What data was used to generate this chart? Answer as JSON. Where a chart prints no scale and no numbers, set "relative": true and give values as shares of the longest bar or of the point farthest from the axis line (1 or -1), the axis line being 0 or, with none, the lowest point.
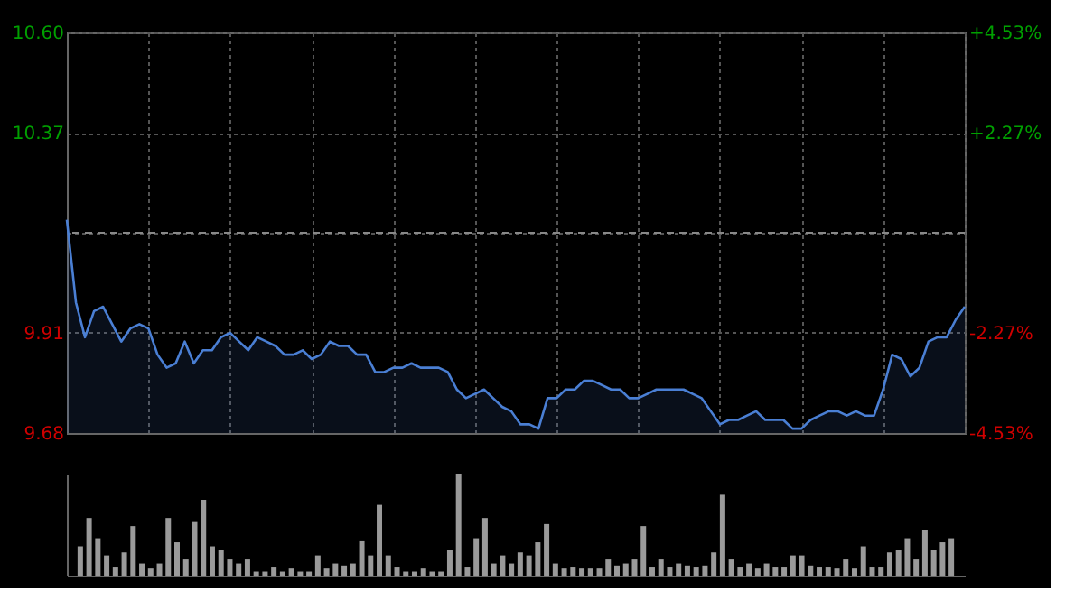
{
  "chart_data": [
    {
      "type": "area",
      "categories": [
        null,
        null,
        null,
        null,
        null,
        null,
        null,
        null,
        null,
        null,
        null,
        null,
        null,
        null,
        null,
        null,
        null,
        null,
        null,
        null,
        null,
        null,
        null,
        null,
        null,
        null,
        null,
        null,
        null,
        null,
        null,
        null,
        null,
        null,
        null,
        null,
        null,
        null,
        null,
        null,
        null,
        null,
        null,
        null,
        null,
        null,
        null,
        null,
        null,
        null,
        null,
        null,
        null,
        null,
        null,
        null,
        null,
        null,
        null,
        null,
        null,
        null,
        null,
        null,
        null,
        null,
        null,
        null,
        null,
        null,
        null,
        null,
        null,
        null,
        null,
        null,
        null,
        null,
        null,
        null,
        null,
        null,
        null,
        null,
        null,
        null,
        null,
        null,
        null,
        null,
        null,
        null,
        null,
        null,
        null,
        null,
        null,
        null,
        null,
        null
      ],
      "series": [
        {
          "color": "#4a7fd4",
          "values": [
            10.17,
            9.98,
            9.9,
            9.96,
            9.97,
            9.93,
            9.89,
            9.92,
            9.93,
            9.92,
            9.86,
            9.83,
            9.84,
            9.89,
            9.84,
            9.87,
            9.87,
            9.9,
            9.91,
            9.89,
            9.87,
            9.9,
            9.89,
            9.88,
            9.86,
            9.86,
            9.87,
            9.85,
            9.86,
            9.89,
            9.88,
            9.88,
            9.86,
            9.86,
            9.82,
            9.82,
            9.83,
            9.83,
            9.84,
            9.83,
            9.83,
            9.83,
            9.82,
            9.78,
            9.76,
            9.77,
            9.78,
            9.76,
            9.74,
            9.73,
            9.7,
            9.7,
            9.69,
            9.76,
            9.76,
            9.78,
            9.78,
            9.8,
            9.8,
            9.79,
            9.78,
            9.78,
            9.76,
            9.76,
            9.77,
            9.78,
            9.78,
            9.78,
            9.78,
            9.77,
            9.76,
            9.73,
            9.7,
            9.71,
            9.71,
            9.72,
            9.73,
            9.71,
            9.71,
            9.71,
            9.69,
            9.69,
            9.71,
            9.72,
            9.73,
            9.73,
            9.72,
            9.73,
            9.72,
            9.72,
            9.78,
            9.86,
            9.85,
            9.81,
            9.83,
            9.89,
            9.9,
            9.9,
            9.94,
            9.97
          ]
        }
      ],
      "ylim": [
        9.68,
        10.6
      ],
      "yticks": [
        {
          "value": 9.68,
          "label": "9.68"
        },
        {
          "value": 9.91,
          "label": "9.91"
        },
        {
          "value": 10.14,
          "label": null
        },
        {
          "value": 10.37,
          "label": "10.37"
        },
        {
          "value": 10.6,
          "label": "10.60"
        }
      ],
      "y2lim": [
        -4.53,
        4.53
      ],
      "y2ticks": [
        {
          "value": -4.53,
          "label": "-4.53%"
        },
        {
          "value": -2.27,
          "label": "-2.27%"
        },
        {
          "value": 2.27,
          "label": "+2.27%"
        },
        {
          "value": 4.53,
          "label": "+4.53%"
        }
      ],
      "ref_lines": [
        {
          "axis": "y",
          "value": 10.14,
          "label": null,
          "line_style": "dashed"
        }
      ],
      "grid": true,
      "tick_labels": "y"
    },
    {
      "type": "bar",
      "relative": true,
      "categories": [
        null,
        null,
        null,
        null,
        null,
        null,
        null,
        null,
        null,
        null,
        null,
        null,
        null,
        null,
        null,
        null,
        null,
        null,
        null,
        null,
        null,
        null,
        null,
        null,
        null,
        null,
        null,
        null,
        null,
        null,
        null,
        null,
        null,
        null,
        null,
        null,
        null,
        null,
        null,
        null,
        null,
        null,
        null,
        null,
        null,
        null,
        null,
        null,
        null,
        null,
        null,
        null,
        null,
        null,
        null,
        null,
        null,
        null,
        null,
        null,
        null,
        null,
        null,
        null,
        null,
        null,
        null,
        null,
        null,
        null,
        null,
        null,
        null,
        null,
        null,
        null,
        null,
        null,
        null,
        null,
        null,
        null,
        null,
        null,
        null,
        null,
        null,
        null,
        null,
        null,
        null,
        null,
        null,
        null,
        null,
        null,
        null,
        null,
        null,
        null
      ],
      "series": [
        {
          "color": "#9a9a9a",
          "values": [
            0.29,
            0.57,
            0.37,
            0.2,
            0.08,
            0.23,
            0.49,
            0.12,
            0.07,
            0.12,
            0.57,
            0.33,
            0.16,
            0.53,
            0.75,
            0.29,
            0.25,
            0.16,
            0.12,
            0.16,
            0.04,
            0.04,
            0.08,
            0.04,
            0.07,
            0.04,
            0.04,
            0.2,
            0.07,
            0.12,
            0.1,
            0.12,
            0.34,
            0.2,
            0.7,
            0.2,
            0.08,
            0.04,
            0.04,
            0.07,
            0.04,
            0.04,
            0.25,
            1,
            0.08,
            0.37,
            0.57,
            0.12,
            0.2,
            0.12,
            0.23,
            0.2,
            0.33,
            0.51,
            0.12,
            0.07,
            0.08,
            0.07,
            0.07,
            0.07,
            0.16,
            0.1,
            0.12,
            0.16,
            0.49,
            0.08,
            0.16,
            0.08,
            0.12,
            0.1,
            0.08,
            0.1,
            0.23,
            0.8,
            0.16,
            0.08,
            0.12,
            0.07,
            0.12,
            0.08,
            0.08,
            0.2,
            0.2,
            0.1,
            0.08,
            0.08,
            0.07,
            0.16,
            0.07,
            0.29,
            0.08,
            0.08,
            0.23,
            0.25,
            0.37,
            0.16,
            0.45,
            0.25,
            0.33,
            0.37
          ]
        }
      ]
    }
  ]
}
